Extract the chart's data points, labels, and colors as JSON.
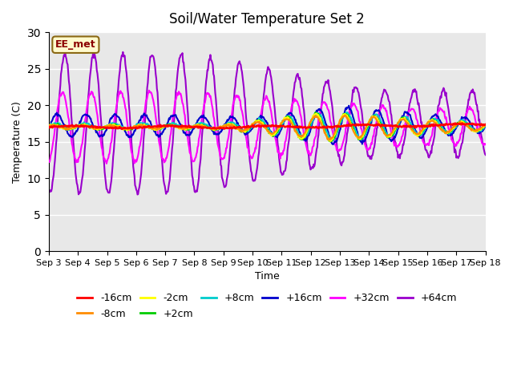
{
  "title": "Soil/Water Temperature Set 2",
  "xlabel": "Time",
  "ylabel": "Temperature (C)",
  "ylim": [
    0,
    30
  ],
  "yticks": [
    0,
    5,
    10,
    15,
    20,
    25,
    30
  ],
  "xlim_days": [
    0,
    15
  ],
  "x_tick_labels": [
    "Sep 3",
    "Sep 4",
    "Sep 5",
    "Sep 6",
    "Sep 7",
    "Sep 8",
    "Sep 9",
    "Sep 10",
    "Sep 11",
    "Sep 12",
    "Sep 13",
    "Sep 14",
    "Sep 15",
    "Sep 16",
    "Sep 17",
    "Sep 18"
  ],
  "annotation_text": "EE_met",
  "annotation_color": "#8B0000",
  "annotation_bg": "#FFFACD",
  "annotation_border": "#8B6914",
  "series_colors": {
    "-16cm": "#FF0000",
    "-8cm": "#FF8C00",
    "-2cm": "#FFFF00",
    "+2cm": "#00CC00",
    "+8cm": "#00CCCC",
    "+16cm": "#0000CC",
    "+32cm": "#FF00FF",
    "+64cm": "#9900CC"
  },
  "background_color": "#E8E8E8",
  "fig_background": "#FFFFFF",
  "grid_color": "#FFFFFF",
  "legend_fontsize": 9
}
